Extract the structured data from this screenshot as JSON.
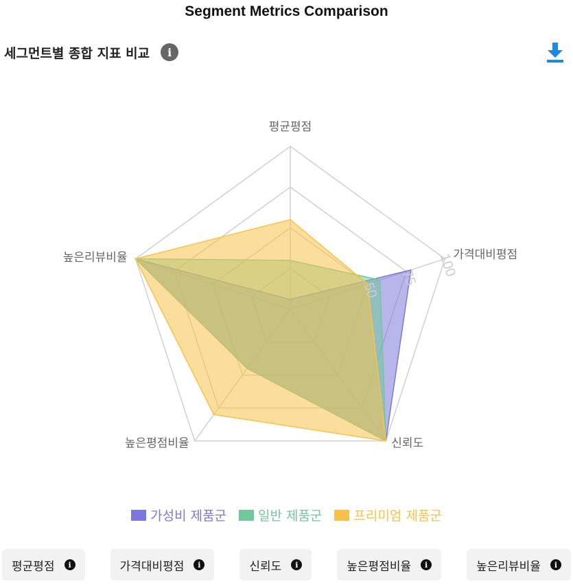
{
  "page": {
    "title": "Segment Metrics Comparison"
  },
  "header": {
    "title": "세그먼트별 종합 지표 비교",
    "info_icon": "info-icon",
    "download_icon": "download-icon"
  },
  "chart_data": {
    "type": "radar",
    "axes": [
      "평균평점",
      "가격대비평점",
      "신뢰도",
      "높은평점비율",
      "높은리뷰비율"
    ],
    "radial_ticks": [
      "50",
      "75",
      "100"
    ],
    "range": [
      0,
      100
    ],
    "grid": true,
    "legend_position": "bottom",
    "series": [
      {
        "name": "가성비 제품군",
        "color": "#7b78d9",
        "values": [
          6,
          78,
          100,
          45,
          100
        ]
      },
      {
        "name": "일반 제품군",
        "color": "#73c79c",
        "values": [
          30,
          58,
          100,
          45,
          100
        ]
      },
      {
        "name": "프리미엄 제품군",
        "color": "#f8c24a",
        "values": [
          55,
          50,
          100,
          80,
          100
        ]
      }
    ]
  },
  "chips": [
    {
      "label": "평균평점"
    },
    {
      "label": "가격대비평점"
    },
    {
      "label": "신뢰도"
    },
    {
      "label": "높은평점비율"
    },
    {
      "label": "높은리뷰비율"
    }
  ]
}
